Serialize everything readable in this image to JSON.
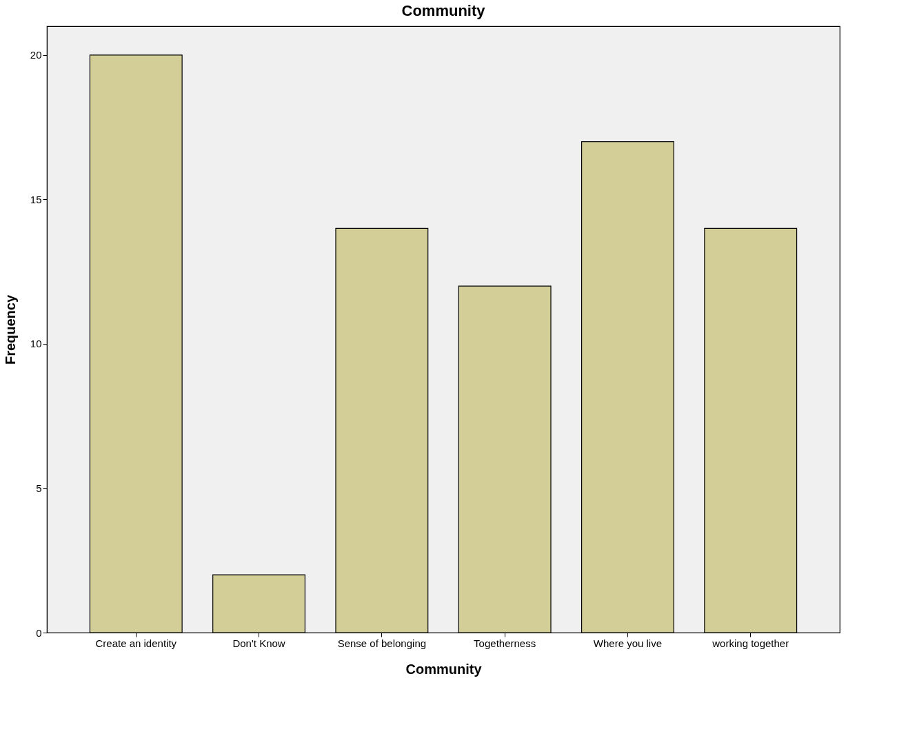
{
  "chart_data": {
    "type": "bar",
    "title": "Community",
    "xlabel": "Community",
    "ylabel": "Frequency",
    "categories": [
      "Create an identity",
      "Don't Know",
      "Sense of belonging",
      "Togetherness",
      "Where you live",
      "working together"
    ],
    "values": [
      20,
      2,
      14,
      12,
      17,
      14
    ],
    "color": "#d3ce97",
    "ylim": [
      0,
      21
    ],
    "yticks": [
      0,
      5,
      10,
      15,
      20
    ],
    "grid": false
  }
}
